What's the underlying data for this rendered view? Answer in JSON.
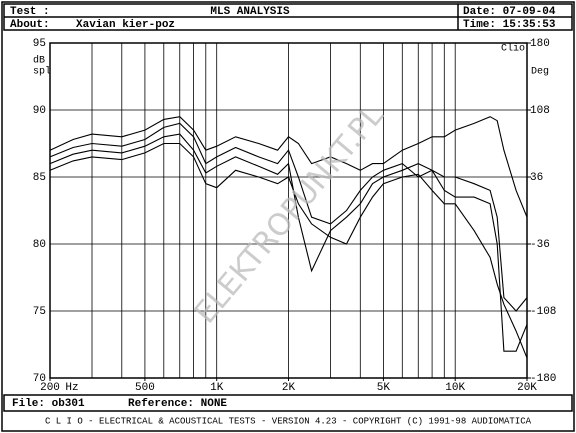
{
  "header": {
    "test": "Test :",
    "title": "MLS ANALYSIS",
    "date": "Date: 07-09-04",
    "about": "About:",
    "about_value": "Xavian kier-poz",
    "time": "Time: 15:35:53"
  },
  "footer": {
    "file": "File: ob301",
    "reference": "Reference: NONE",
    "copyright": "C L I O  -  ELECTRICAL & ACOUSTICAL TESTS  -  VERSION 4.23  -  COPYRIGHT (C) 1991-98 AUDIOMATICA"
  },
  "chart_data": {
    "type": "line",
    "xscale": "log",
    "ylabel": [
      "dB",
      "spl"
    ],
    "y2_title": "Clio",
    "y2label": "Deg",
    "x_unit": "Hz",
    "watermark": "ELEKTROPUNKT.PL",
    "xlim": [
      200,
      20000
    ],
    "ylim": [
      70,
      95
    ],
    "y2lim": [
      -180,
      180
    ],
    "xticks": [
      200,
      500,
      {
        "value": 1000,
        "label": "1K"
      },
      {
        "value": 2000,
        "label": "2K"
      },
      {
        "value": 5000,
        "label": "5K"
      },
      {
        "value": 10000,
        "label": "10K"
      },
      {
        "value": 20000,
        "label": "20K"
      }
    ],
    "xgrid": [
      300,
      400,
      500,
      600,
      700,
      800,
      900,
      1000,
      2000,
      3000,
      4000,
      5000,
      6000,
      7000,
      8000,
      9000,
      10000
    ],
    "yticks": [
      70,
      75,
      80,
      85,
      90,
      95
    ],
    "y2ticks": [
      -180,
      -108,
      -36,
      36,
      108,
      180
    ],
    "grid": true,
    "x": [
      200,
      250,
      300,
      400,
      500,
      600,
      700,
      800,
      900,
      1000,
      1200,
      1500,
      1800,
      2000,
      2200,
      2500,
      3000,
      3500,
      4000,
      4500,
      5000,
      6000,
      7000,
      8000,
      9000,
      10000,
      12000,
      14000,
      15000,
      16000,
      18000,
      20000
    ],
    "series": [
      {
        "color": "#000000",
        "values": [
          87,
          87.8,
          88.2,
          88,
          88.5,
          89.3,
          89.5,
          88.5,
          87,
          87.3,
          88,
          87.5,
          87,
          88,
          87.5,
          86,
          86.5,
          86,
          85.5,
          86,
          86,
          87,
          87.5,
          88,
          88,
          88.5,
          89,
          89.5,
          89.2,
          87,
          84,
          82
        ]
      },
      {
        "color": "#000000",
        "values": [
          86.5,
          87.2,
          87.5,
          87.3,
          87.8,
          88.7,
          89,
          88,
          86,
          86.5,
          87.2,
          86.5,
          86,
          87,
          85,
          82,
          81.5,
          82.5,
          84,
          85,
          85.5,
          86,
          85,
          85.5,
          85,
          85,
          84.5,
          84,
          82,
          76,
          75,
          76
        ]
      },
      {
        "color": "#000000",
        "values": [
          86,
          86.7,
          87,
          86.8,
          87.3,
          88,
          88.2,
          87,
          85.3,
          85.8,
          86.5,
          85.8,
          85.2,
          86,
          82,
          78,
          81,
          82,
          83,
          84.5,
          85,
          85.5,
          86,
          85.5,
          84,
          83.5,
          83.5,
          83,
          80,
          72,
          72,
          74
        ]
      },
      {
        "color": "#000000",
        "values": [
          85.5,
          86.2,
          86.5,
          86.3,
          86.8,
          87.5,
          87.5,
          86.5,
          84.5,
          84.2,
          85.5,
          85,
          84.5,
          85,
          83,
          81.5,
          80.5,
          80,
          82,
          83.5,
          84.5,
          85,
          85.2,
          84,
          83,
          83,
          81,
          79,
          77,
          75.5,
          73.5,
          71.5
        ]
      }
    ]
  }
}
